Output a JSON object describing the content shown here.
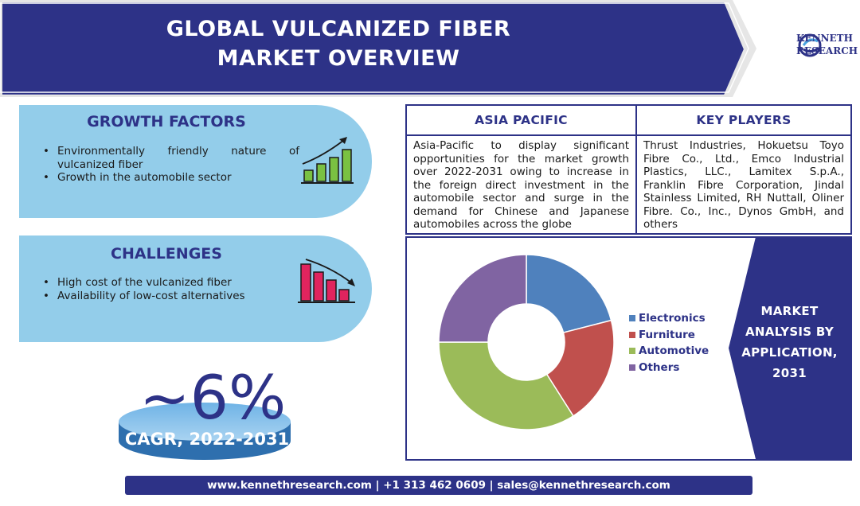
{
  "header": {
    "title_line1": "GLOBAL VULCANIZED FIBER",
    "title_line2": "MARKET OVERVIEW",
    "logo_line1": "KENNETH",
    "logo_line2": "RESEARCH"
  },
  "growth": {
    "title": "GROWTH FACTORS",
    "items": [
      "Environmentally friendly nature of vulcanized fiber",
      "Growth in the automobile sector"
    ]
  },
  "challenges": {
    "title": "CHALLENGES",
    "items": [
      "High cost of the vulcanized fiber",
      "Availability of low-cost alternatives"
    ]
  },
  "cagr": {
    "value": "~6%",
    "label": "CAGR, 2022-2031"
  },
  "region": {
    "title": "ASIA PACIFIC",
    "text": "Asia-Pacific to display significant opportunities for the market growth over 2022-2031 owing to increase in the foreign direct investment in the automobile sector and surge in the demand for Chinese and Japanese automobiles across the globe"
  },
  "players": {
    "title": "KEY PLAYERS",
    "text": "Thrust Industries, Hokuetsu Toyo Fibre Co., Ltd., Emco Industrial Plastics, LLC., Lamitex S.p.A., Franklin Fibre Corporation, Jindal Stainless Limited, RH Nuttall, Oliner Fibre. Co., Inc., Dynos GmbH, and others"
  },
  "market": {
    "line1": "MARKET",
    "line2": "ANALYSIS BY",
    "line3": "APPLICATION,",
    "line4": "2031"
  },
  "chart_data": {
    "type": "pie",
    "donut": true,
    "legend_position": "right",
    "categories": [
      "Electronics",
      "Furniture",
      "Automotive",
      "Others"
    ],
    "values": [
      21,
      20,
      34,
      25
    ],
    "colors": [
      "#4f81bd",
      "#c0504d",
      "#9bbb59",
      "#8064a2"
    ]
  },
  "footer": {
    "text": "www.kennethresearch.com | +1 313 462 0609 | sales@kennethresearch.com"
  },
  "colors": {
    "navy": "#2d3287",
    "panel_blue": "#93cdea"
  }
}
